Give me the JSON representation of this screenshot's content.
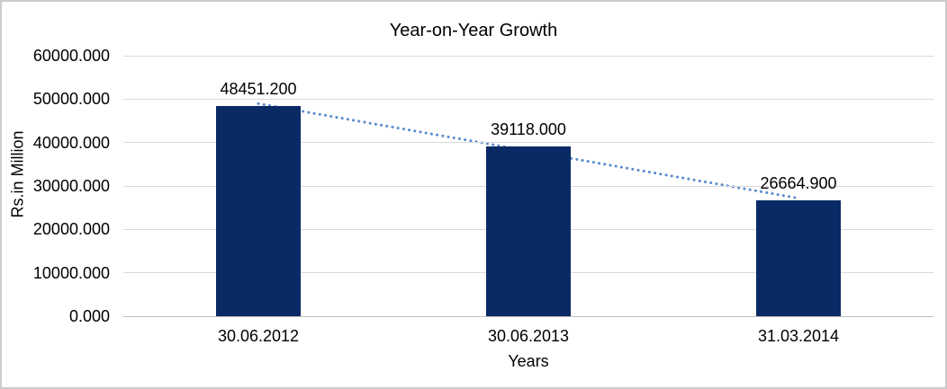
{
  "chart_data": {
    "type": "bar",
    "title": "Year-on-Year Growth",
    "xlabel": "Years",
    "ylabel": "Rs.in Million",
    "categories": [
      "30.06.2012",
      "30.06.2013",
      "31.03.2014"
    ],
    "values": [
      48451.2,
      39118.0,
      26664.9
    ],
    "data_labels": [
      "48451.200",
      "39118.000",
      "26664.900"
    ],
    "ylim": [
      0,
      60000
    ],
    "ytick_step": 10000,
    "ytick_labels": [
      "0.000",
      "10000.000",
      "20000.000",
      "30000.000",
      "40000.000",
      "50000.000",
      "60000.000"
    ],
    "grid": "horizontal",
    "legend": "none",
    "trendline": {
      "type": "linear",
      "style": "dotted",
      "color": "#5589ce"
    },
    "colors": {
      "bar": "#0a2a66",
      "gridline": "#d9d9d9",
      "axis_line": "#bfbfbf",
      "text": "#000000",
      "background": "#ffffff",
      "border": "#cbcbcb"
    }
  }
}
